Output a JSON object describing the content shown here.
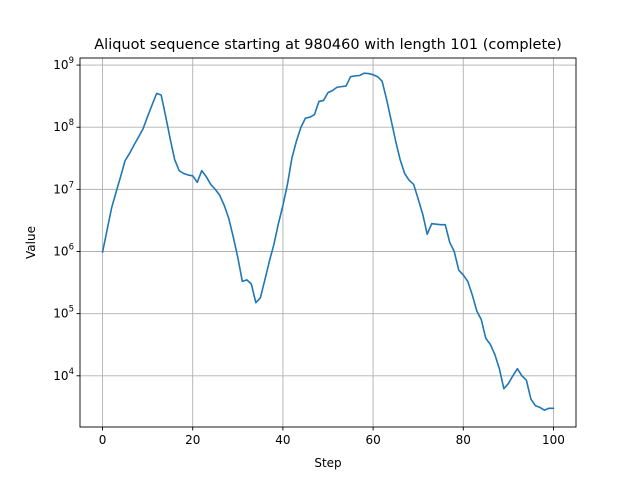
{
  "chart_data": {
    "type": "line",
    "title": "Aliquot sequence starting at 980460 with length 101 (complete)",
    "xlabel": "Step",
    "ylabel": "Value",
    "xlim": [
      -5,
      105
    ],
    "ylim": [
      1500,
      1300000000
    ],
    "yscale": "log",
    "grid": true,
    "legend": "none",
    "x_ticks": [
      0,
      20,
      40,
      60,
      80,
      100
    ],
    "x_tick_labels": [
      "0",
      "20",
      "40",
      "60",
      "80",
      "100"
    ],
    "y_ticks": [
      10000,
      100000,
      1000000,
      10000000,
      100000000,
      1000000000
    ],
    "y_tick_labels": [
      {
        "base": "10",
        "exp": "4"
      },
      {
        "base": "10",
        "exp": "5"
      },
      {
        "base": "10",
        "exp": "6"
      },
      {
        "base": "10",
        "exp": "7"
      },
      {
        "base": "10",
        "exp": "8"
      },
      {
        "base": "10",
        "exp": "9"
      }
    ],
    "series": [
      {
        "color": "#1f77b4",
        "x": [
          0,
          1,
          2,
          3,
          4,
          5,
          6,
          7,
          8,
          9,
          10,
          11,
          12,
          13,
          14,
          15,
          16,
          17,
          18,
          19,
          20,
          21,
          22,
          23,
          24,
          25,
          26,
          27,
          28,
          29,
          30,
          31,
          32,
          33,
          34,
          35,
          36,
          37,
          38,
          39,
          40,
          41,
          42,
          43,
          44,
          45,
          46,
          47,
          48,
          49,
          50,
          51,
          52,
          53,
          54,
          55,
          56,
          57,
          58,
          59,
          60,
          61,
          62,
          63,
          64,
          65,
          66,
          67,
          68,
          69,
          70,
          71,
          72,
          73,
          74,
          75,
          76,
          77,
          78,
          79,
          80,
          81,
          82,
          83,
          84,
          85,
          86,
          87,
          88,
          89,
          90,
          91,
          92,
          93,
          94,
          95,
          96,
          97,
          98,
          99,
          100
        ],
        "y": [
          980460,
          2200000,
          5000000,
          9000000,
          16000000,
          29000000,
          38000000,
          52000000,
          70000000,
          95000000,
          150000000,
          230000000,
          350000000,
          330000000,
          150000000,
          65000000,
          30000000,
          20000000,
          18000000,
          17000000,
          16500000,
          13000000,
          20000000,
          16000000,
          12000000,
          10000000,
          8000000,
          5500000,
          3400000,
          1700000,
          800000,
          330000,
          350000,
          300000,
          150000,
          180000,
          350000,
          700000,
          1300000,
          2800000,
          5500000,
          12000000,
          32000000,
          60000000,
          100000000,
          140000000,
          145000000,
          160000000,
          260000000,
          270000000,
          360000000,
          390000000,
          440000000,
          450000000,
          460000000,
          650000000,
          670000000,
          680000000,
          740000000,
          730000000,
          700000000,
          650000000,
          550000000,
          280000000,
          130000000,
          60000000,
          30000000,
          18000000,
          14000000,
          12000000,
          7000000,
          4000000,
          1900000,
          2800000,
          2750000,
          2700000,
          2700000,
          1400000,
          1000000,
          500000,
          420000,
          330000,
          200000,
          110000,
          80000,
          40000,
          32000,
          22000,
          13000,
          6200,
          7500,
          10000,
          13000,
          10000,
          8500,
          4200,
          3300,
          3100,
          2800,
          3000,
          3000
        ]
      }
    ]
  }
}
